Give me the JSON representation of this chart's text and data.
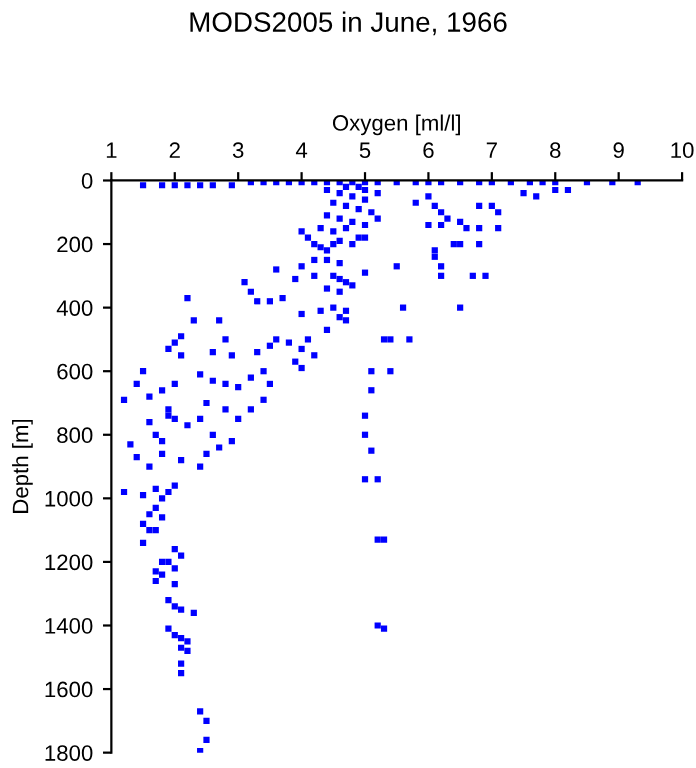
{
  "chart_data": {
    "type": "scatter",
    "title": "MODS2005 in June, 1966",
    "xlabel": "Oxygen [ml/l]",
    "ylabel": "Depth [m]",
    "xlim": [
      1,
      10
    ],
    "xticks": [
      1,
      2,
      3,
      4,
      5,
      6,
      7,
      8,
      9,
      10
    ],
    "ylim": [
      1800,
      0
    ],
    "yticks": [
      0,
      200,
      400,
      600,
      800,
      1000,
      1200,
      1400,
      1600,
      1800
    ],
    "grid": false,
    "marker": "square",
    "series": [
      {
        "color": "#0000ff",
        "x": [
          1.5,
          1.8,
          2.0,
          2.2,
          2.4,
          2.6,
          2.9,
          3.2,
          3.4,
          3.6,
          3.8,
          4.0,
          4.2,
          4.4,
          4.6,
          4.8,
          5.0,
          5.2,
          5.5,
          5.8,
          6.0,
          6.2,
          6.5,
          6.8,
          7.0,
          7.3,
          7.6,
          7.8,
          8.0,
          8.5,
          8.9,
          9.3,
          4.4,
          4.6,
          4.8,
          5.0,
          5.2,
          4.5,
          4.7,
          4.9,
          5.1,
          4.4,
          4.6,
          4.8,
          5.0,
          4.3,
          4.5,
          4.7,
          5.2,
          5.0,
          4.9,
          4.7,
          6.0,
          6.1,
          5.8,
          6.2,
          6.3,
          6.2,
          6.0,
          6.5,
          6.8,
          7.0,
          7.1,
          7.1,
          6.6,
          6.8,
          6.8,
          6.5,
          6.4,
          6.1,
          6.2,
          6.2,
          6.7,
          6.9,
          6.5,
          6.1,
          7.5,
          7.7,
          8.0,
          8.2,
          5.7,
          5.5,
          5.6,
          5.0,
          5.3,
          5.4,
          5.1,
          5.4,
          5.1,
          5.0,
          5.0,
          5.1,
          5.0,
          5.2,
          5.2,
          5.3,
          5.2,
          5.3,
          4.0,
          4.1,
          4.2,
          4.3,
          4.4,
          4.5,
          4.6,
          4.8,
          4.9,
          5.0,
          4.2,
          4.4,
          4.6,
          4.5,
          4.6,
          4.7,
          4.8,
          4.6,
          4.0,
          3.9,
          3.6,
          3.1,
          3.2,
          3.3,
          3.5,
          3.7,
          4.2,
          4.4,
          4.0,
          4.3,
          4.5,
          4.6,
          4.7,
          4.7,
          4.4,
          4.1,
          4.0,
          3.8,
          3.6,
          3.5,
          3.3,
          4.2,
          4.0,
          3.9,
          3.4,
          3.5,
          3.2,
          3.4,
          3.2,
          3.0,
          2.9,
          2.8,
          2.6,
          2.7,
          2.3,
          2.2,
          2.1,
          1.9,
          2.0,
          2.1,
          2.4,
          2.6,
          2.8,
          2.5,
          2.8,
          3.0,
          2.6,
          2.9,
          2.7,
          2.5,
          2.4,
          2.1,
          2.0,
          1.9,
          1.7,
          1.5,
          1.2,
          1.4,
          1.3,
          1.8,
          1.8,
          1.7,
          1.9,
          1.6,
          1.4,
          1.5,
          1.8,
          2.0,
          1.2,
          1.6,
          2.0,
          2.2,
          2.4,
          1.9,
          1.6,
          1.7,
          1.6,
          1.8,
          1.5,
          1.6,
          1.7,
          1.5,
          1.8,
          2.0,
          2.1,
          1.9,
          1.8,
          2.0,
          1.7,
          1.8,
          2.0,
          1.7,
          1.9,
          2.0,
          2.1,
          2.3,
          1.9,
          2.0,
          2.1,
          2.2,
          2.1,
          2.2,
          2.1,
          2.1,
          2.4,
          2.5,
          2.5,
          2.4
        ],
        "values": [
          15,
          15,
          15,
          15,
          15,
          15,
          15,
          5,
          5,
          5,
          5,
          5,
          5,
          5,
          5,
          5,
          5,
          5,
          5,
          5,
          5,
          5,
          5,
          5,
          5,
          5,
          5,
          5,
          5,
          5,
          5,
          5,
          30,
          40,
          50,
          60,
          40,
          70,
          80,
          90,
          100,
          110,
          120,
          130,
          140,
          150,
          160,
          150,
          120,
          30,
          20,
          20,
          50,
          80,
          70,
          100,
          120,
          140,
          140,
          130,
          80,
          80,
          100,
          150,
          150,
          150,
          200,
          200,
          200,
          240,
          270,
          300,
          300,
          300,
          400,
          220,
          40,
          50,
          30,
          30,
          500,
          270,
          400,
          290,
          500,
          500,
          600,
          600,
          660,
          740,
          800,
          850,
          940,
          940,
          1130,
          1130,
          1400,
          1410,
          160,
          180,
          200,
          210,
          220,
          200,
          190,
          200,
          180,
          180,
          250,
          250,
          260,
          300,
          310,
          320,
          330,
          350,
          270,
          310,
          280,
          320,
          350,
          380,
          380,
          370,
          300,
          340,
          420,
          410,
          400,
          430,
          410,
          440,
          470,
          500,
          530,
          510,
          500,
          520,
          540,
          550,
          590,
          570,
          600,
          640,
          620,
          690,
          720,
          650,
          550,
          500,
          540,
          440,
          440,
          370,
          490,
          530,
          510,
          550,
          610,
          630,
          640,
          700,
          720,
          750,
          800,
          820,
          840,
          860,
          900,
          880,
          960,
          980,
          970,
          990,
          980,
          870,
          830,
          820,
          860,
          800,
          720,
          680,
          640,
          600,
          660,
          640,
          690,
          760,
          750,
          770,
          750,
          740,
          900,
          1030,
          1050,
          1060,
          1080,
          1100,
          1100,
          1140,
          1000,
          1160,
          1180,
          1200,
          1200,
          1220,
          1230,
          1240,
          1270,
          1260,
          1320,
          1340,
          1350,
          1360,
          1410,
          1430,
          1440,
          1450,
          1470,
          1480,
          1520,
          1550,
          1670,
          1700,
          1760,
          1795
        ]
      }
    ]
  }
}
